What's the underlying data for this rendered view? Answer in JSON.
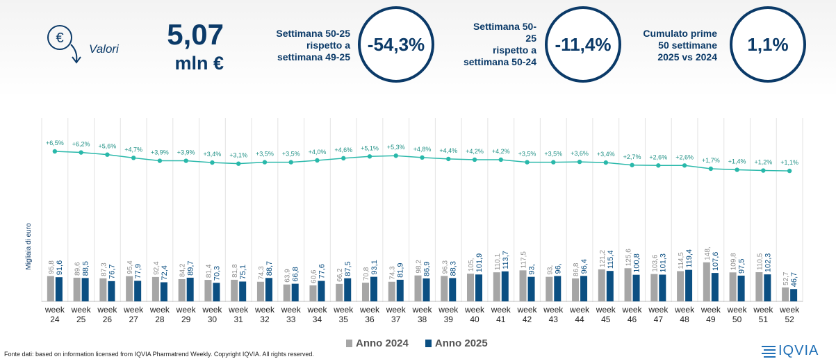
{
  "header": {
    "metric_label": "Valori",
    "value": "5,07",
    "unit": "mln €",
    "kpis": [
      {
        "label_lines": [
          "Settimana 50-25",
          "rispetto a",
          "settimana 49-25"
        ],
        "value": "-54,3%"
      },
      {
        "label_lines": [
          "Settimana 50-",
          "25",
          "rispetto a",
          "settimana 50-24"
        ],
        "value": "-11,4%"
      },
      {
        "label_lines": [
          "Cumulato prime",
          "50 settimane",
          "2025 vs 2024"
        ],
        "value": "1,1%"
      }
    ]
  },
  "chart_data": {
    "type": "bar",
    "ylabel": "Migliaia di euro",
    "categories": [
      "week 24",
      "week 25",
      "week 26",
      "week 27",
      "week 28",
      "week 29",
      "week 30",
      "week 31",
      "week 32",
      "week 33",
      "week 34",
      "week 35",
      "week 36",
      "week 37",
      "week 38",
      "week 39",
      "week 40",
      "week 41",
      "week 42",
      "week 43",
      "week 44",
      "week 45",
      "week 46",
      "week 47",
      "week 48",
      "week 49",
      "week 50",
      "week 51",
      "week 52"
    ],
    "series": [
      {
        "name": "Anno 2024",
        "color": "#a6a6a6",
        "values": [
          95.8,
          89.6,
          87.3,
          95.4,
          92.4,
          84.2,
          81.4,
          81.8,
          74.3,
          63.9,
          60.6,
          66.2,
          70.8,
          74.3,
          98.2,
          96.3,
          105,
          110.1,
          117.5,
          93,
          86.8,
          121.2,
          125.6,
          103.6,
          114.5,
          148,
          109.8,
          110.5,
          52.7
        ],
        "labels": [
          "95,8",
          "89,6",
          "87,3",
          "95,4",
          "92,4",
          "84,2",
          "81,4",
          "81,8",
          "74,3",
          "63,9",
          "60,6",
          "66,2",
          "70,8",
          "74,3",
          "98,2",
          "96,3",
          "105,",
          "110,1",
          "117,5",
          "93,",
          "86,8",
          "121,2",
          "125,6",
          "103,6",
          "114,5",
          "148,",
          "109,8",
          "110,5",
          "52,7"
        ]
      },
      {
        "name": "Anno 2025",
        "color": "#0b4f82",
        "values": [
          91.6,
          88.5,
          76.7,
          77.9,
          72.4,
          89.7,
          70.3,
          75.1,
          88.7,
          66.8,
          77.6,
          87.5,
          93.1,
          81.9,
          86.9,
          88.3,
          101.9,
          113.7,
          93,
          96,
          96.4,
          115.4,
          100.8,
          101.3,
          119.4,
          107.6,
          97.5,
          102.3,
          46.7
        ],
        "labels": [
          "91,6",
          "88,5",
          "76,7",
          "77,9",
          "72,4",
          "89,7",
          "70,3",
          "75,1",
          "88,7",
          "66,8",
          "77,6",
          "87,5",
          "93,1",
          "81,9",
          "86,9",
          "88,3",
          "101,9",
          "113,7",
          "93,",
          "96,",
          "96,4",
          "115,4",
          "100,8",
          "101,3",
          "119,4",
          "107,6",
          "97,5",
          "102,3",
          "46,7"
        ]
      }
    ],
    "cumulative_growth": {
      "color": "#29b8aa",
      "values": [
        6.5,
        6.2,
        5.6,
        4.7,
        3.9,
        3.9,
        3.4,
        3.1,
        3.5,
        3.5,
        4.0,
        4.6,
        5.1,
        5.3,
        4.8,
        4.4,
        4.2,
        4.2,
        3.5,
        3.5,
        3.6,
        3.4,
        2.7,
        2.6,
        2.6,
        1.7,
        1.4,
        1.2,
        1.1
      ],
      "labels": [
        "+6,5%",
        "+6,2%",
        "+5,6%",
        "+4,7%",
        "+3,9%",
        "+3,9%",
        "+3,4%",
        "+3,1%",
        "+3,5%",
        "+3,5%",
        "+4,0%",
        "+4,6%",
        "+5,1%",
        "+5,3%",
        "+4,8%",
        "+4,4%",
        "+4,2%",
        "+4,2%",
        "+3,5%",
        "+3,5%",
        "+3,6%",
        "+3,4%",
        "+2,7%",
        "+2,6%",
        "+2,6%",
        "+1,7%",
        "+1,4%",
        "+1,2%",
        "+1,1%"
      ]
    },
    "legend": [
      "Anno 2024",
      "Anno 2025"
    ],
    "legend_position": "bottom"
  },
  "footer": {
    "source": "Fonte dati: based on information licensed from IQVIA Pharmatrend Weekly. Copyright IQVIA. All rights reserved.",
    "logo": "IQVIA"
  }
}
